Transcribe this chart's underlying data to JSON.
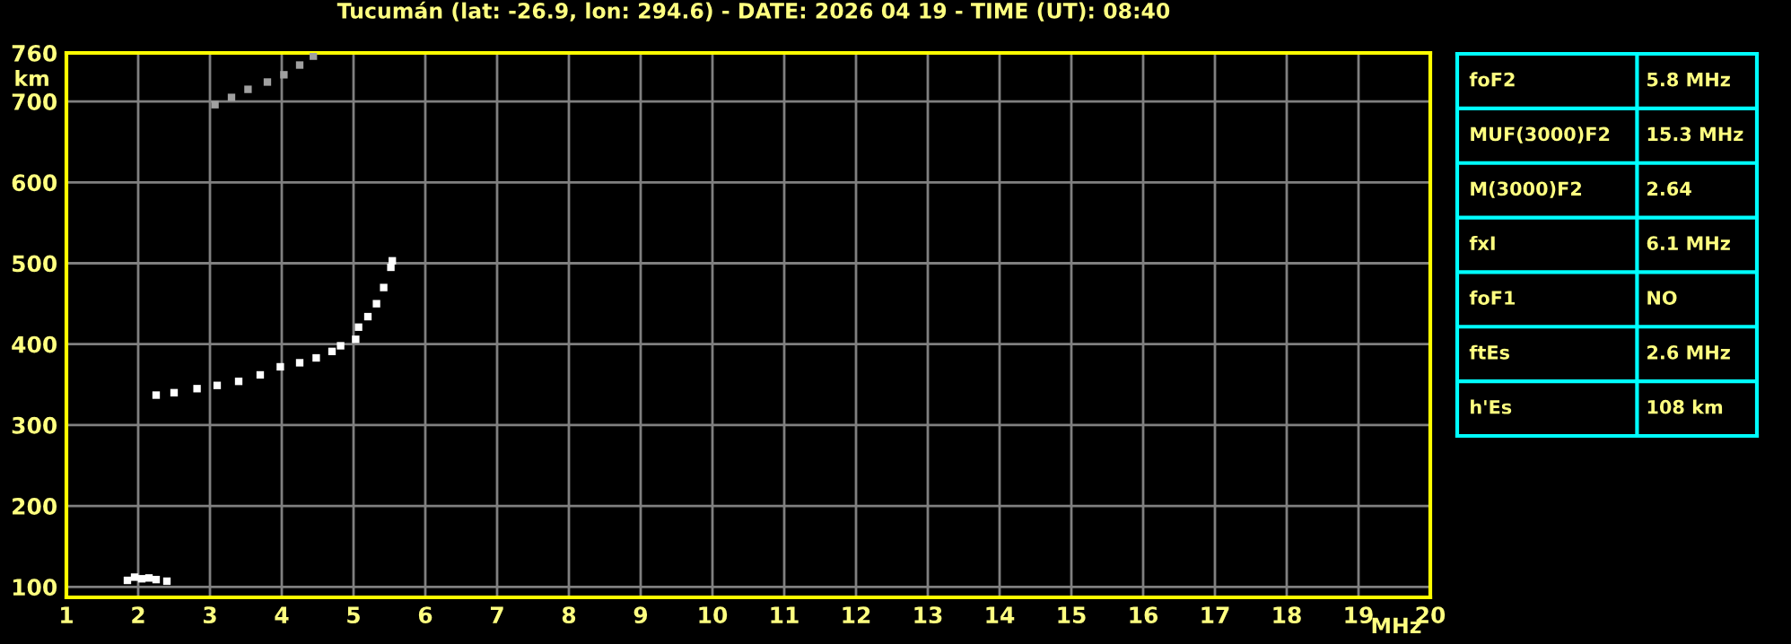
{
  "chart_data": [
    {
      "type": "scatter",
      "title": "Tucumán (lat: -26.9, lon: 294.6) - DATE: 2026 04 19 - TIME (UT): 08:40",
      "xlabel": "MHz",
      "ylabel": "km",
      "marker": "square",
      "grid": true,
      "xlim": [
        1,
        20
      ],
      "ylim": [
        87,
        760
      ],
      "xticks": [
        1,
        2,
        3,
        4,
        5,
        6,
        7,
        8,
        9,
        10,
        11,
        12,
        13,
        14,
        15,
        16,
        17,
        18,
        19,
        20
      ],
      "yticks": [
        100,
        200,
        300,
        400,
        500,
        600,
        700,
        760
      ],
      "series": [
        {
          "color": "#ffffff",
          "x": [
            2.25,
            2.5,
            2.82,
            3.1,
            3.4,
            3.7,
            3.98,
            4.25,
            4.48,
            4.7,
            4.82,
            5.03,
            5.07,
            5.2,
            5.32,
            5.42,
            5.52,
            5.54
          ],
          "values": [
            337,
            340,
            345,
            349,
            354,
            362,
            372,
            377,
            383,
            391,
            398,
            406,
            421,
            434,
            450,
            470,
            495,
            503
          ]
        },
        {
          "color": "#ffffff",
          "x": [
            1.85,
            1.95,
            2.05,
            2.15,
            2.25,
            2.4
          ],
          "values": [
            108,
            112,
            110,
            111,
            109,
            107
          ]
        },
        {
          "color": "#a0a0a0",
          "x": [
            3.07,
            3.3,
            3.53,
            3.8,
            4.03,
            4.25,
            4.44
          ],
          "values": [
            696,
            705,
            715,
            724,
            733,
            745,
            756
          ]
        }
      ]
    },
    {
      "type": "other",
      "annotations": [
        "foF2",
        "5.8 MHz",
        "MUF(3000)F2",
        "15.3 MHz",
        "M(3000)F2",
        "2.64",
        "fxI",
        "6.1 MHz",
        "foF1",
        "NO",
        "ftEs",
        "2.6 MHz",
        "h'Es",
        "108 km"
      ]
    }
  ]
}
